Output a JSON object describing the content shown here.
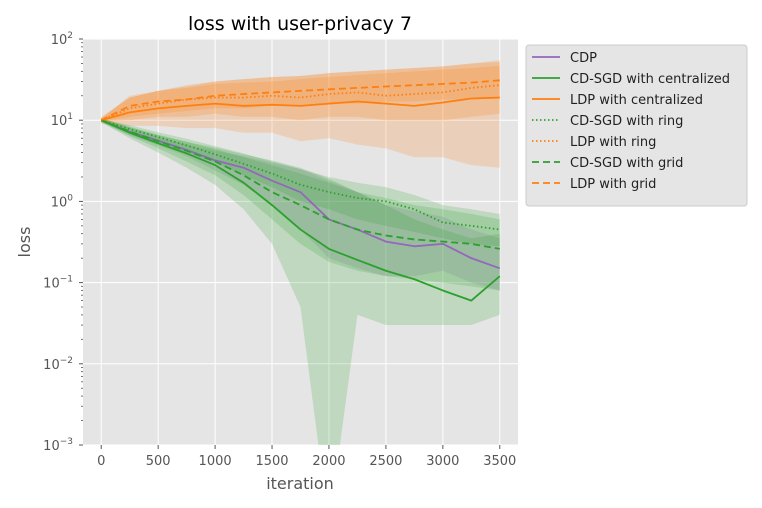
{
  "chart_data": {
    "type": "line",
    "title": "loss with user-privacy  7",
    "xlabel": "iteration",
    "ylabel": "loss",
    "yscale": "log",
    "xlim": [
      -160,
      3660
    ],
    "ylim": [
      0.001,
      100
    ],
    "xticks": [
      0,
      500,
      1000,
      1500,
      2000,
      2500,
      3000,
      3500
    ],
    "xtick_labels": [
      "0",
      "500",
      "1000",
      "1500",
      "2000",
      "2500",
      "3000",
      "3500"
    ],
    "yticks": [
      0.001,
      0.01,
      0.1,
      1,
      10,
      100
    ],
    "ytick_labels": [
      {
        "base": "10",
        "exp": "−3"
      },
      {
        "base": "10",
        "exp": "−2"
      },
      {
        "base": "10",
        "exp": "−1"
      },
      {
        "base": "10",
        "exp": "0"
      },
      {
        "base": "10",
        "exp": "1"
      },
      {
        "base": "10",
        "exp": "2"
      }
    ],
    "grid": true,
    "legend_position": "outside-upper-right",
    "x": [
      0,
      250,
      500,
      750,
      1000,
      1250,
      1500,
      1750,
      2000,
      2250,
      2500,
      2750,
      3000,
      3250,
      3500
    ],
    "series": [
      {
        "name": "CDP",
        "color": "#9467bd",
        "dash": "solid",
        "values": [
          10,
          7.2,
          5.6,
          4.3,
          3.2,
          2.6,
          1.8,
          1.3,
          0.6,
          0.45,
          0.32,
          0.28,
          0.3,
          0.2,
          0.15
        ],
        "band_lower": [
          9.5,
          6.5,
          4.9,
          3.6,
          2.4,
          1.6,
          0.9,
          0.45,
          0.2,
          0.15,
          0.12,
          0.12,
          0.14,
          0.1,
          0.08
        ],
        "band_upper": [
          10.5,
          8.0,
          6.3,
          5.0,
          4.2,
          3.6,
          3.0,
          2.5,
          1.8,
          1.3,
          0.9,
          0.75,
          0.65,
          0.45,
          0.35
        ]
      },
      {
        "name": "CD-SGD with centralized",
        "color": "#2ca02c",
        "dash": "solid",
        "values": [
          10,
          7.0,
          5.2,
          3.9,
          2.8,
          1.7,
          0.9,
          0.45,
          0.26,
          0.19,
          0.14,
          0.11,
          0.08,
          0.06,
          0.12
        ],
        "band_lower": [
          9.4,
          6.0,
          4.0,
          2.6,
          1.6,
          0.8,
          0.3,
          0.05,
          0.0001,
          0.04,
          0.03,
          0.03,
          0.03,
          0.03,
          0.04
        ],
        "band_upper": [
          10.6,
          8.2,
          6.6,
          5.4,
          4.6,
          3.8,
          3.2,
          2.6,
          1.9,
          1.3,
          0.9,
          0.6,
          0.45,
          0.35,
          0.4
        ]
      },
      {
        "name": "LDP with centralized",
        "color": "#ff7f0e",
        "dash": "solid",
        "values": [
          10,
          12.5,
          14,
          15,
          16,
          15,
          15.5,
          15,
          16,
          17,
          16,
          15,
          16.5,
          18.5,
          19
        ],
        "band_lower": [
          9.0,
          8.5,
          8.5,
          8.0,
          8.0,
          7.0,
          7.0,
          5.5,
          6.0,
          5.0,
          4.5,
          3.5,
          3.5,
          2.8,
          2.6
        ],
        "band_upper": [
          11.0,
          19,
          23,
          26,
          30,
          32,
          34,
          35,
          38,
          40,
          42,
          44,
          46,
          50,
          52
        ]
      },
      {
        "name": "CD-SGD with ring",
        "color": "#2ca02c",
        "dash": "dotted",
        "values": [
          10,
          7.8,
          6.2,
          4.9,
          3.8,
          2.9,
          2.2,
          1.6,
          1.3,
          1.1,
          1.0,
          0.8,
          0.55,
          0.5,
          0.45
        ],
        "band_lower": [
          9.6,
          7.0,
          5.4,
          4.0,
          3.0,
          2.1,
          1.5,
          1.0,
          0.8,
          0.6,
          0.5,
          0.42,
          0.35,
          0.3,
          0.28
        ],
        "band_upper": [
          10.4,
          8.7,
          7.1,
          5.9,
          4.8,
          3.9,
          3.1,
          2.5,
          2.0,
          1.7,
          1.5,
          1.2,
          0.9,
          0.8,
          0.7
        ]
      },
      {
        "name": "LDP with ring",
        "color": "#ff7f0e",
        "dash": "dotted",
        "values": [
          10,
          14,
          16,
          18,
          19,
          19,
          20,
          19,
          21,
          22,
          20,
          21,
          22,
          25,
          27
        ],
        "band_lower": [
          9.5,
          10,
          11,
          11,
          12,
          11,
          11,
          10,
          11,
          11,
          10,
          10,
          10,
          11,
          12
        ],
        "band_upper": [
          10.5,
          19,
          23,
          27,
          30,
          32,
          34,
          35,
          38,
          40,
          42,
          44,
          46,
          50,
          55
        ]
      },
      {
        "name": "CD-SGD with grid",
        "color": "#2ca02c",
        "dash": "dashed",
        "values": [
          10,
          7.3,
          5.5,
          4.2,
          3.1,
          2.1,
          1.3,
          0.9,
          0.6,
          0.45,
          0.38,
          0.34,
          0.32,
          0.3,
          0.26
        ],
        "band_lower": [
          9.5,
          6.4,
          4.5,
          3.1,
          2.1,
          1.2,
          0.6,
          0.3,
          0.18,
          0.14,
          0.12,
          0.11,
          0.1,
          0.09,
          0.08
        ],
        "band_upper": [
          10.5,
          8.3,
          6.6,
          5.4,
          4.4,
          3.5,
          2.8,
          2.2,
          1.7,
          1.3,
          1.1,
          0.9,
          0.8,
          0.7,
          0.6
        ]
      },
      {
        "name": "LDP with grid",
        "color": "#ff7f0e",
        "dash": "dashed",
        "values": [
          10,
          15,
          17,
          18,
          20,
          21,
          22,
          23,
          24,
          25,
          26,
          27,
          28,
          29,
          31
        ],
        "band_lower": [
          9.5,
          11,
          12,
          13,
          14,
          14,
          15,
          15,
          16,
          16,
          17,
          17,
          18,
          18,
          19
        ],
        "band_upper": [
          10.5,
          20,
          23,
          25,
          28,
          29,
          30,
          32,
          34,
          36,
          38,
          40,
          42,
          44,
          47
        ]
      }
    ]
  }
}
